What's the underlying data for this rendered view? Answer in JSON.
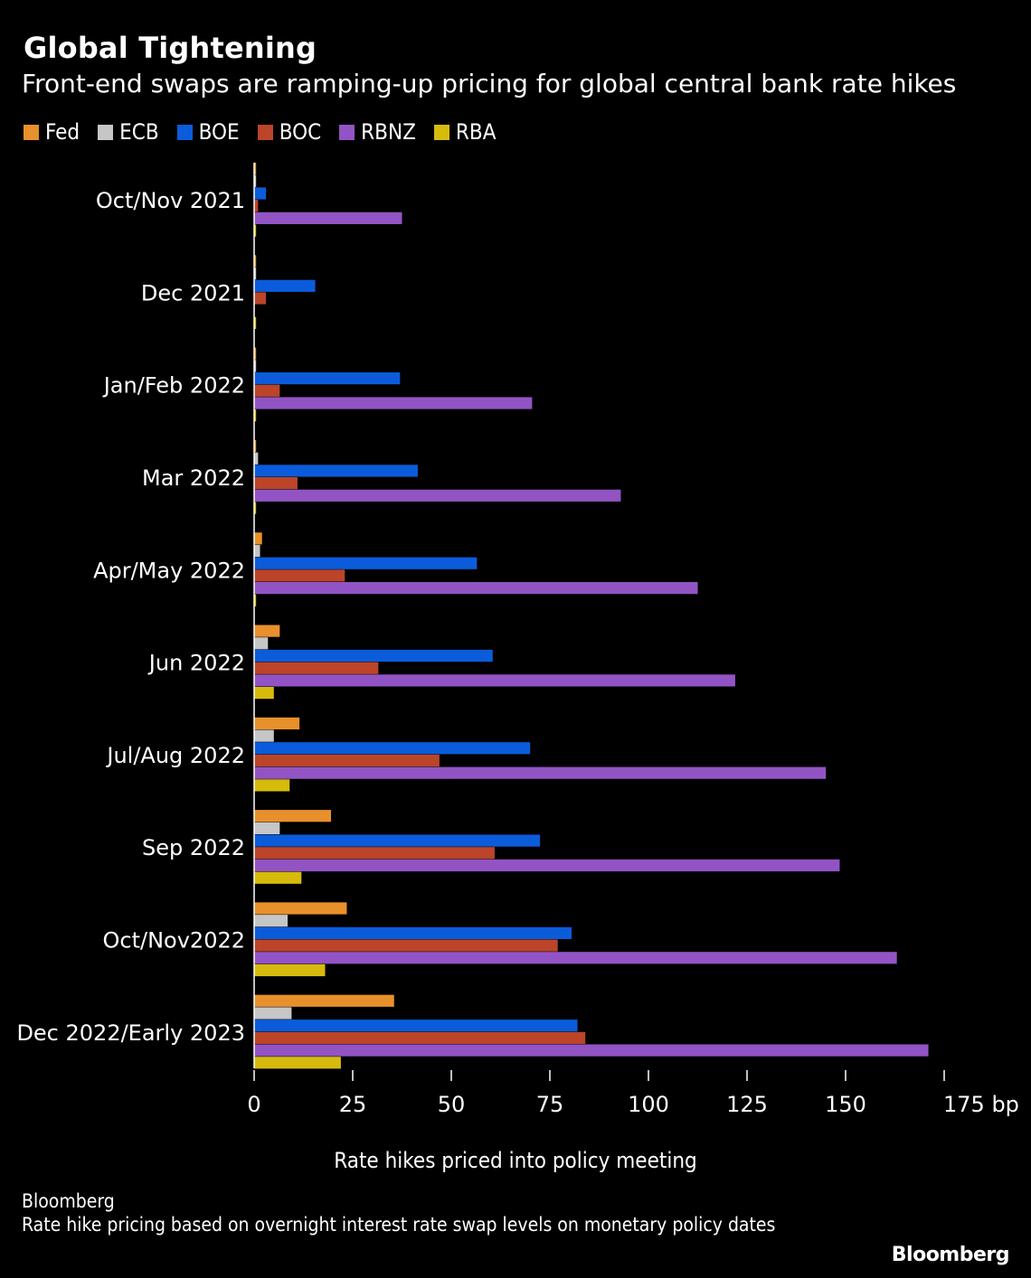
{
  "title": "Global Tightening",
  "subtitle": "Front-end swaps are ramping-up pricing for global central bank rate hikes",
  "x_axis_caption": "Rate hikes priced into policy meeting",
  "source": "Bloomberg",
  "note": "Rate hike pricing based on overnight interest rate swap levels on monetary policy dates",
  "logo": "Bloomberg",
  "chart_data": {
    "type": "bar",
    "orientation": "horizontal",
    "title": "Global Tightening",
    "subtitle": "Front-end swaps are ramping-up pricing for global central bank rate hikes",
    "xlabel": "Rate hikes priced into policy meeting",
    "ylabel": "",
    "xlim": [
      0,
      175
    ],
    "x_ticks": [
      "0",
      "25",
      "50",
      "75",
      "100",
      "125",
      "150",
      "175 bp"
    ],
    "grid": false,
    "legend_position": "top-left",
    "categories": [
      "Oct/Nov 2021",
      "Dec 2021",
      "Jan/Feb 2022",
      "Mar 2022",
      "Apr/May 2022",
      "Jun 2022",
      "Jul/Aug 2022",
      "Sep 2022",
      "Oct/Nov2022",
      "Dec 2022/Early 2023"
    ],
    "series": [
      {
        "name": "Fed",
        "color": "#e8902b",
        "values": [
          0.5,
          0.5,
          0.5,
          0.5,
          2,
          6.5,
          11.5,
          19.5,
          23.5,
          35.5
        ]
      },
      {
        "name": "ECB",
        "color": "#c6c6c6",
        "values": [
          0.5,
          0.5,
          0.5,
          1,
          1.5,
          3.5,
          5,
          6.5,
          8.5,
          9.5
        ]
      },
      {
        "name": "BOE",
        "color": "#0b5cdb",
        "values": [
          3,
          15.5,
          37,
          41.5,
          56.5,
          60.5,
          70,
          72.5,
          80.5,
          82
        ]
      },
      {
        "name": "BOC",
        "color": "#bb4429",
        "values": [
          1,
          3,
          6.5,
          11,
          23,
          31.5,
          47,
          61,
          77,
          84
        ]
      },
      {
        "name": "RBNZ",
        "color": "#9254c4",
        "values": [
          37.5,
          0,
          70.5,
          93,
          112.5,
          122,
          145,
          148.5,
          163,
          171
        ]
      },
      {
        "name": "RBA",
        "color": "#d6bb0c",
        "values": [
          0.5,
          0.5,
          0.5,
          0.5,
          0.5,
          5,
          9,
          12,
          18,
          22
        ]
      }
    ]
  }
}
